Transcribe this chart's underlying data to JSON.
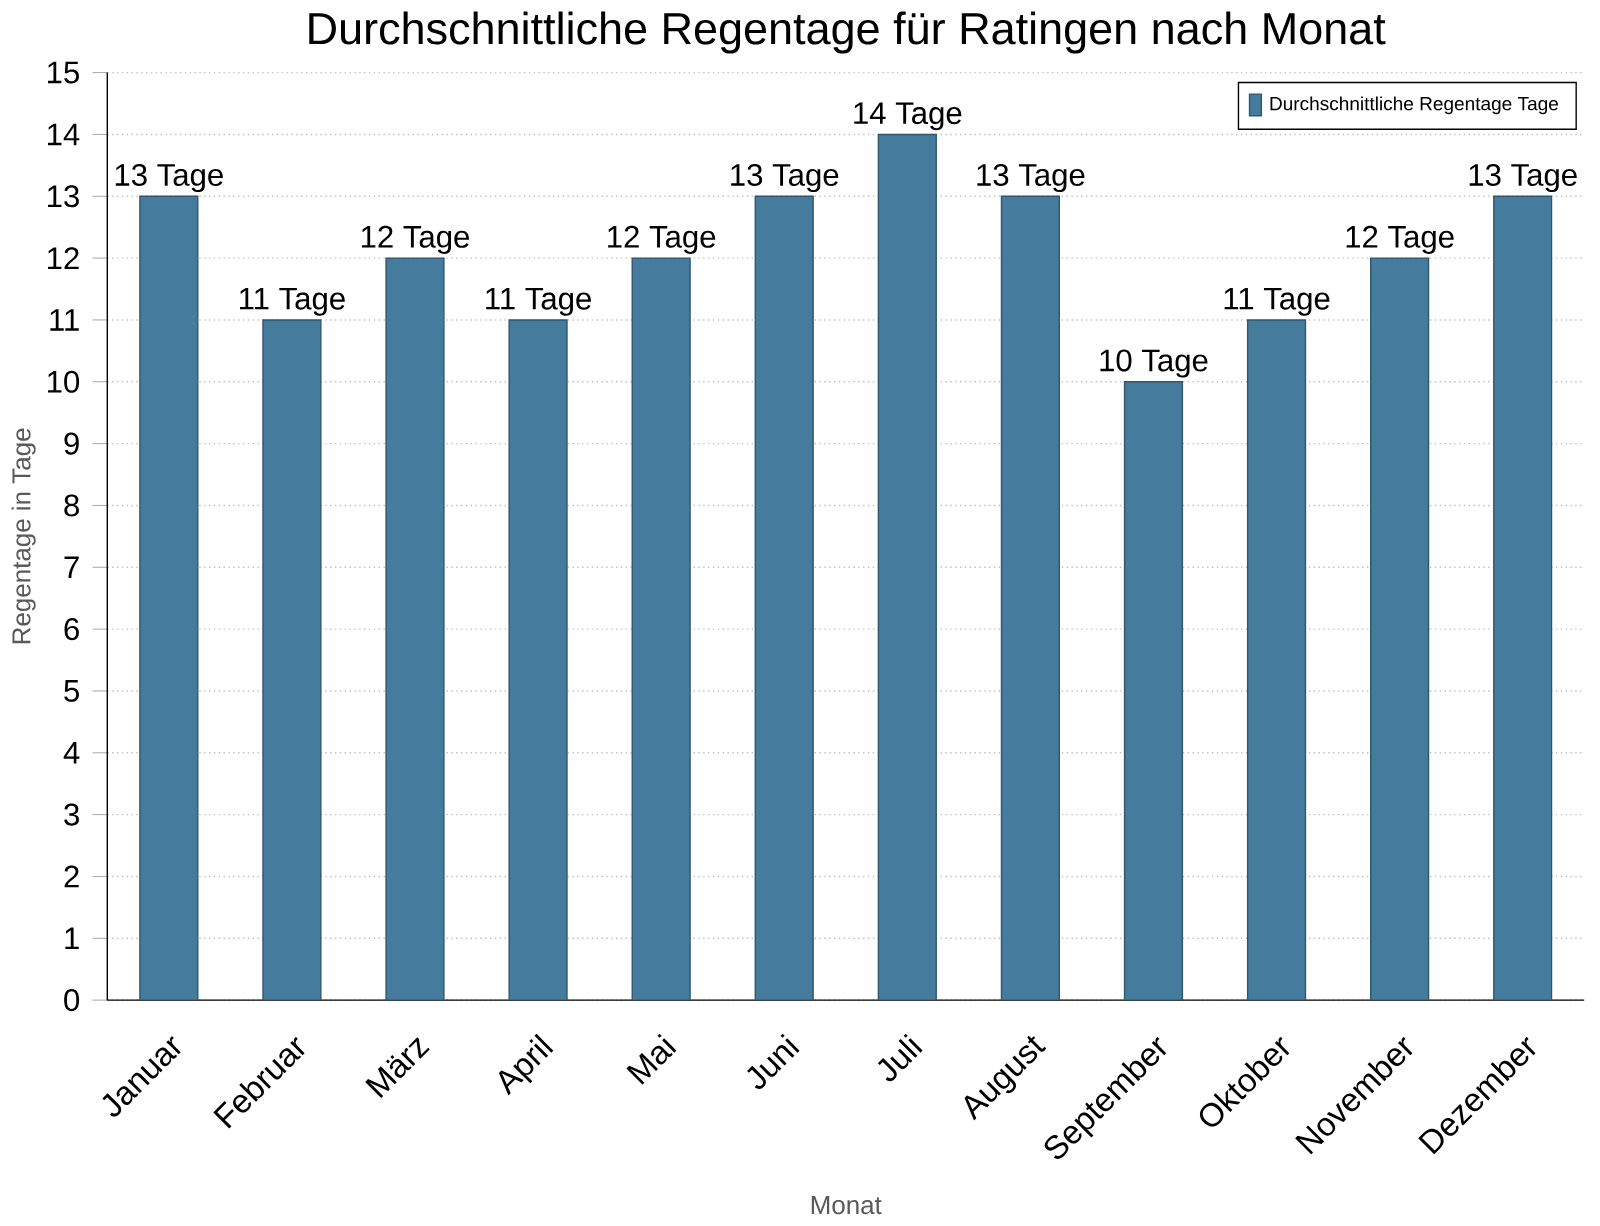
{
  "chart_data": {
    "type": "bar",
    "title": "Durchschnittliche Regentage für Ratingen nach Monat",
    "xlabel": "Monat",
    "ylabel": "Regentage in Tage",
    "categories": [
      "Januar",
      "Februar",
      "März",
      "April",
      "Mai",
      "Juni",
      "Juli",
      "August",
      "September",
      "Oktober",
      "November",
      "Dezember"
    ],
    "series": [
      {
        "name": "Durchschnittliche Regentage Tage",
        "color": "#457b9d",
        "values": [
          13,
          11,
          12,
          11,
          12,
          13,
          14,
          13,
          10,
          11,
          12,
          13
        ],
        "value_labels": [
          "13 Tage",
          "11 Tage",
          "12 Tage",
          "11 Tage",
          "12 Tage",
          "13 Tage",
          "14 Tage",
          "13 Tage",
          "10 Tage",
          "11 Tage",
          "12 Tage",
          "13 Tage"
        ]
      }
    ],
    "ylim": [
      0,
      15
    ],
    "yticks": [
      0,
      1,
      2,
      3,
      4,
      5,
      6,
      7,
      8,
      9,
      10,
      11,
      12,
      13,
      14,
      15
    ],
    "grid": "y",
    "legend": "top right"
  }
}
